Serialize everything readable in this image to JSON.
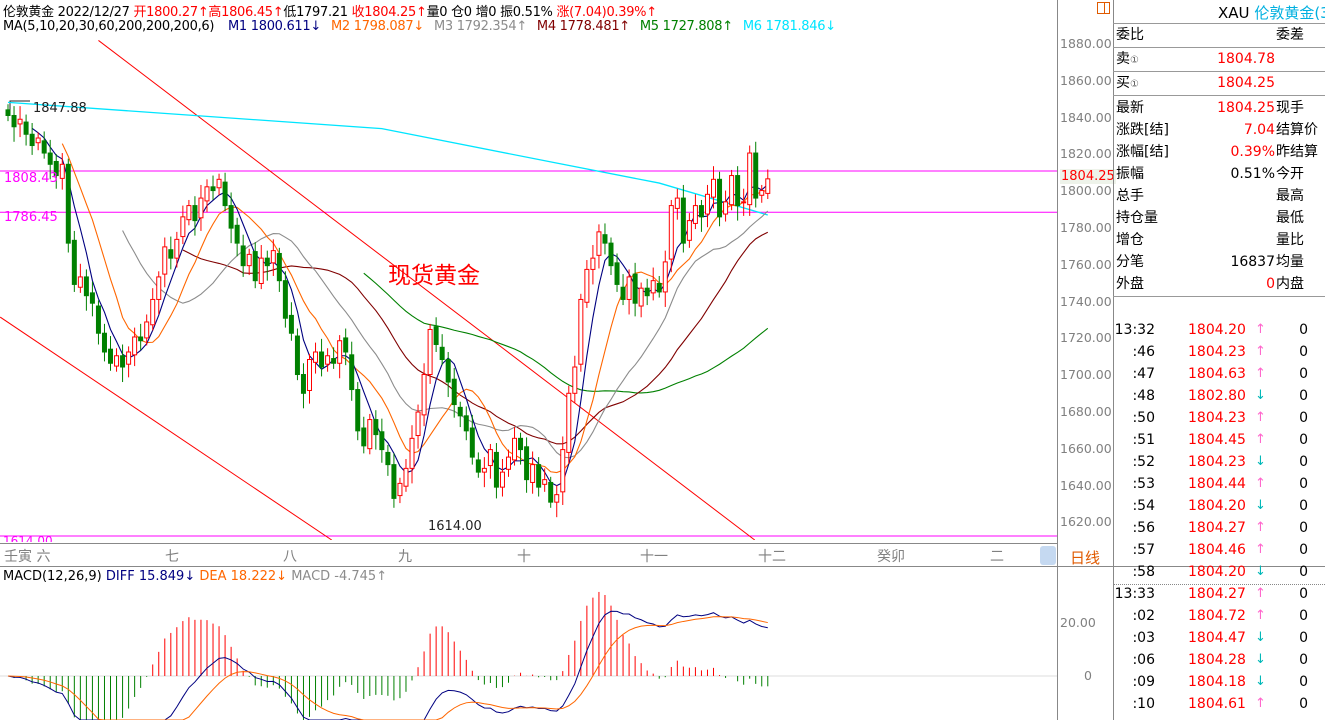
{
  "header": {
    "symbol_name": "伦敦黄金",
    "date": "2022/12/27",
    "open_label": "开",
    "open": "1800.27",
    "high_label": "高",
    "high": "1806.45",
    "low_label": "低",
    "low": "1797.21",
    "close_label": "收",
    "close": "1804.25",
    "volume": "量0",
    "position": "仓0",
    "increase": "增0",
    "amplitude": "振0.51%",
    "change": "涨(7.04)0.39%",
    "up_arrow": "↑",
    "down_arrow": "↓"
  },
  "ma_legend": {
    "title": "MA(5,10,20,30,60,200,200,200,6)",
    "items": [
      {
        "label": "M1",
        "value": "1800.611",
        "arrow": "↓",
        "color": "#000080"
      },
      {
        "label": "M2",
        "value": "1798.087",
        "arrow": "↓",
        "color": "#ff6600"
      },
      {
        "label": "M3",
        "value": "1792.354",
        "arrow": "↑",
        "color": "#8c8c8c"
      },
      {
        "label": "M4",
        "value": "1778.481",
        "arrow": "↑",
        "color": "#800000"
      },
      {
        "label": "M5",
        "value": "1727.808",
        "arrow": "↑",
        "color": "#008000"
      },
      {
        "label": "M6",
        "value": "1781.846",
        "arrow": "↓",
        "color": "#00e5ff"
      }
    ]
  },
  "chart_data": {
    "type": "candlestick",
    "y_ticks": [
      "1880.00",
      "1860.00",
      "1840.00",
      "1820.00",
      "1800.00",
      "1780.00",
      "1760.00",
      "1740.00",
      "1720.00",
      "1700.00",
      "1680.00",
      "1660.00",
      "1640.00",
      "1620.00"
    ],
    "ylim": [
      1614,
      1880
    ],
    "closes": [
      1838,
      1832,
      1836,
      1828,
      1822,
      1826,
      1818,
      1812,
      1806,
      1812,
      1770,
      1748,
      1752,
      1742,
      1738,
      1722,
      1712,
      1706,
      1710,
      1704,
      1712,
      1720,
      1718,
      1728,
      1740,
      1752,
      1768,
      1762,
      1772,
      1784,
      1790,
      1782,
      1794,
      1800,
      1798,
      1804,
      1790,
      1778,
      1770,
      1758,
      1764,
      1750,
      1762,
      1758,
      1766,
      1750,
      1730,
      1722,
      1700,
      1690,
      1708,
      1712,
      1704,
      1710,
      1706,
      1718,
      1712,
      1692,
      1670,
      1662,
      1676,
      1668,
      1660,
      1652,
      1634,
      1642,
      1650,
      1666,
      1680,
      1700,
      1724,
      1716,
      1708,
      1696,
      1684,
      1678,
      1670,
      1656,
      1648,
      1650,
      1660,
      1640,
      1648,
      1656,
      1666,
      1660,
      1644,
      1652,
      1640,
      1644,
      1632,
      1636,
      1660,
      1690,
      1704,
      1740,
      1756,
      1762,
      1776,
      1770,
      1758,
      1748,
      1740,
      1752,
      1738,
      1746,
      1742,
      1750,
      1744,
      1760,
      1790,
      1794,
      1770,
      1782,
      1790,
      1784,
      1796,
      1804,
      1784,
      1792,
      1806,
      1790,
      1792,
      1818,
      1794,
      1798,
      1804.25
    ],
    "ma_periods": [
      5,
      10,
      20,
      30,
      60
    ],
    "ma_colors": [
      "#000080",
      "#ff6600",
      "#8c8c8c",
      "#800000",
      "#008000"
    ],
    "ma200_points": [
      [
        0,
        1845
      ],
      [
        62,
        1831
      ],
      [
        92,
        1812
      ],
      [
        108,
        1802
      ],
      [
        126,
        1785
      ]
    ],
    "ma200_color": "#00e5ff",
    "horizontal_lines": [
      {
        "value": 1808.43,
        "label": "1808.43",
        "color": "#ff00ff"
      },
      {
        "value": 1786.45,
        "label": "1786.45",
        "color": "#ff00ff"
      },
      {
        "value": 1614.0,
        "label": "1614.00",
        "color": "#ff00ff"
      }
    ],
    "trend_lines": [
      {
        "from": [
          15,
          1878
        ],
        "to": [
          125,
          1609
        ],
        "color": "#ff0000"
      },
      {
        "from": [
          -1.3,
          1730.6
        ],
        "to": [
          55,
          1609
        ],
        "color": "#ff0000"
      }
    ],
    "annotations": {
      "max_label": "1847.88",
      "min_label": "1614.00",
      "watermark": "现货黄金"
    },
    "last_price_label": "1804.25",
    "up_color": "#ff0000",
    "down_color": "#008000"
  },
  "date_axis": {
    "labels": [
      "壬寅 六",
      "七",
      "八",
      "九",
      "十",
      "十一",
      "十二",
      "癸卯",
      "二"
    ],
    "period_button": "日线"
  },
  "macd": {
    "title": "MACD(12,26,9)",
    "diff_label": "DIFF",
    "diff": "15.849",
    "diff_arrow": "↓",
    "dea_label": "DEA",
    "dea": "18.222",
    "dea_arrow": "↓",
    "macd_label": "MACD",
    "macd": "-4.745",
    "macd_arrow": "↑",
    "y_ticks": [
      "20.00",
      "0"
    ],
    "diff_color": "#000080",
    "dea_color": "#ff6600"
  },
  "quote_panel": {
    "title_code": "XAU",
    "title_name": "伦敦黄金(3",
    "weibi": "委比",
    "weicha": "委差",
    "sell_label": "卖",
    "sell": "1804.78",
    "buy_label": "买",
    "buy": "1804.25",
    "circle_one": "①",
    "rows": [
      {
        "label": "最新",
        "value": "1804.25",
        "right": "现手",
        "color": "#ff0000"
      },
      {
        "label": "涨跌[结]",
        "value": "7.04",
        "right": "结算价",
        "color": "#ff0000"
      },
      {
        "label": "涨幅[结]",
        "value": "0.39%",
        "right": "昨结算",
        "color": "#ff0000"
      },
      {
        "label": "振幅",
        "value": "0.51%",
        "right": "今开",
        "color": "#000000"
      },
      {
        "label": "总手",
        "value": "",
        "right": "最高",
        "color": "#000000"
      },
      {
        "label": "持仓量",
        "value": "",
        "right": "最低",
        "color": "#000000"
      },
      {
        "label": "增仓",
        "value": "",
        "right": "量比",
        "color": "#000000"
      },
      {
        "label": "分笔",
        "value": "16837",
        "right": "均量",
        "color": "#000000"
      },
      {
        "label": "外盘",
        "value": "0",
        "right": "内盘",
        "color": "#ff0000"
      }
    ],
    "ticks": [
      {
        "time": "13:32",
        "price": "1804.20",
        "dir": "up",
        "vol": "0"
      },
      {
        "time": ":46",
        "price": "1804.23",
        "dir": "up",
        "vol": "0"
      },
      {
        "time": ":47",
        "price": "1804.63",
        "dir": "up",
        "vol": "0"
      },
      {
        "time": ":48",
        "price": "1802.80",
        "dir": "down",
        "vol": "0"
      },
      {
        "time": ":50",
        "price": "1804.23",
        "dir": "up",
        "vol": "0"
      },
      {
        "time": ":51",
        "price": "1804.45",
        "dir": "up",
        "vol": "0"
      },
      {
        "time": ":52",
        "price": "1804.23",
        "dir": "down",
        "vol": "0"
      },
      {
        "time": ":53",
        "price": "1804.44",
        "dir": "up",
        "vol": "0"
      },
      {
        "time": ":54",
        "price": "1804.20",
        "dir": "down",
        "vol": "0"
      },
      {
        "time": ":56",
        "price": "1804.27",
        "dir": "up",
        "vol": "0"
      },
      {
        "time": ":57",
        "price": "1804.46",
        "dir": "up",
        "vol": "0"
      },
      {
        "time": ":58",
        "price": "1804.20",
        "dir": "down",
        "vol": "0"
      },
      {
        "time": "13:33",
        "price": "1804.27",
        "dir": "up",
        "vol": "0"
      },
      {
        "time": ":02",
        "price": "1804.72",
        "dir": "up",
        "vol": "0"
      },
      {
        "time": ":03",
        "price": "1804.47",
        "dir": "down",
        "vol": "0"
      },
      {
        "time": ":06",
        "price": "1804.28",
        "dir": "down",
        "vol": "0"
      },
      {
        "time": ":09",
        "price": "1804.18",
        "dir": "down",
        "vol": "0"
      },
      {
        "time": ":10",
        "price": "1804.61",
        "dir": "up",
        "vol": "0"
      }
    ]
  }
}
